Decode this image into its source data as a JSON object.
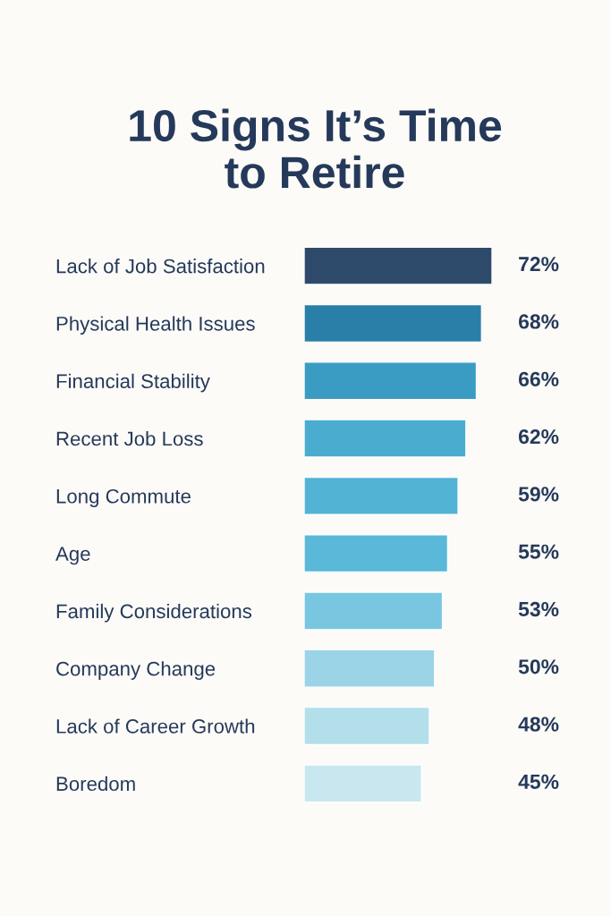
{
  "chart_data": {
    "type": "bar",
    "orientation": "horizontal",
    "title": "10 Signs It’s Time\nto Retire",
    "categories": [
      "Lack of Job Satisfaction",
      "Physical Health Issues",
      "Financial Stability",
      "Recent Job Loss",
      "Long Commute",
      "Age",
      "Family Considerations",
      "Company Change",
      "Lack of Career Growth",
      "Boredom"
    ],
    "values": [
      72,
      68,
      66,
      62,
      59,
      55,
      53,
      50,
      48,
      45
    ],
    "colors": [
      "#2e4a6a",
      "#2a7fa8",
      "#3a9cc2",
      "#4aaccf",
      "#52b3d5",
      "#5ab8d8",
      "#79c6e0",
      "#9ad4e6",
      "#b2dfea",
      "#c9e7ef"
    ],
    "value_labels": [
      "72%",
      "68%",
      "66%",
      "62%",
      "59%",
      "55%",
      "53%",
      "50%",
      "48%",
      "45%"
    ],
    "tick_labels": "y"
  }
}
